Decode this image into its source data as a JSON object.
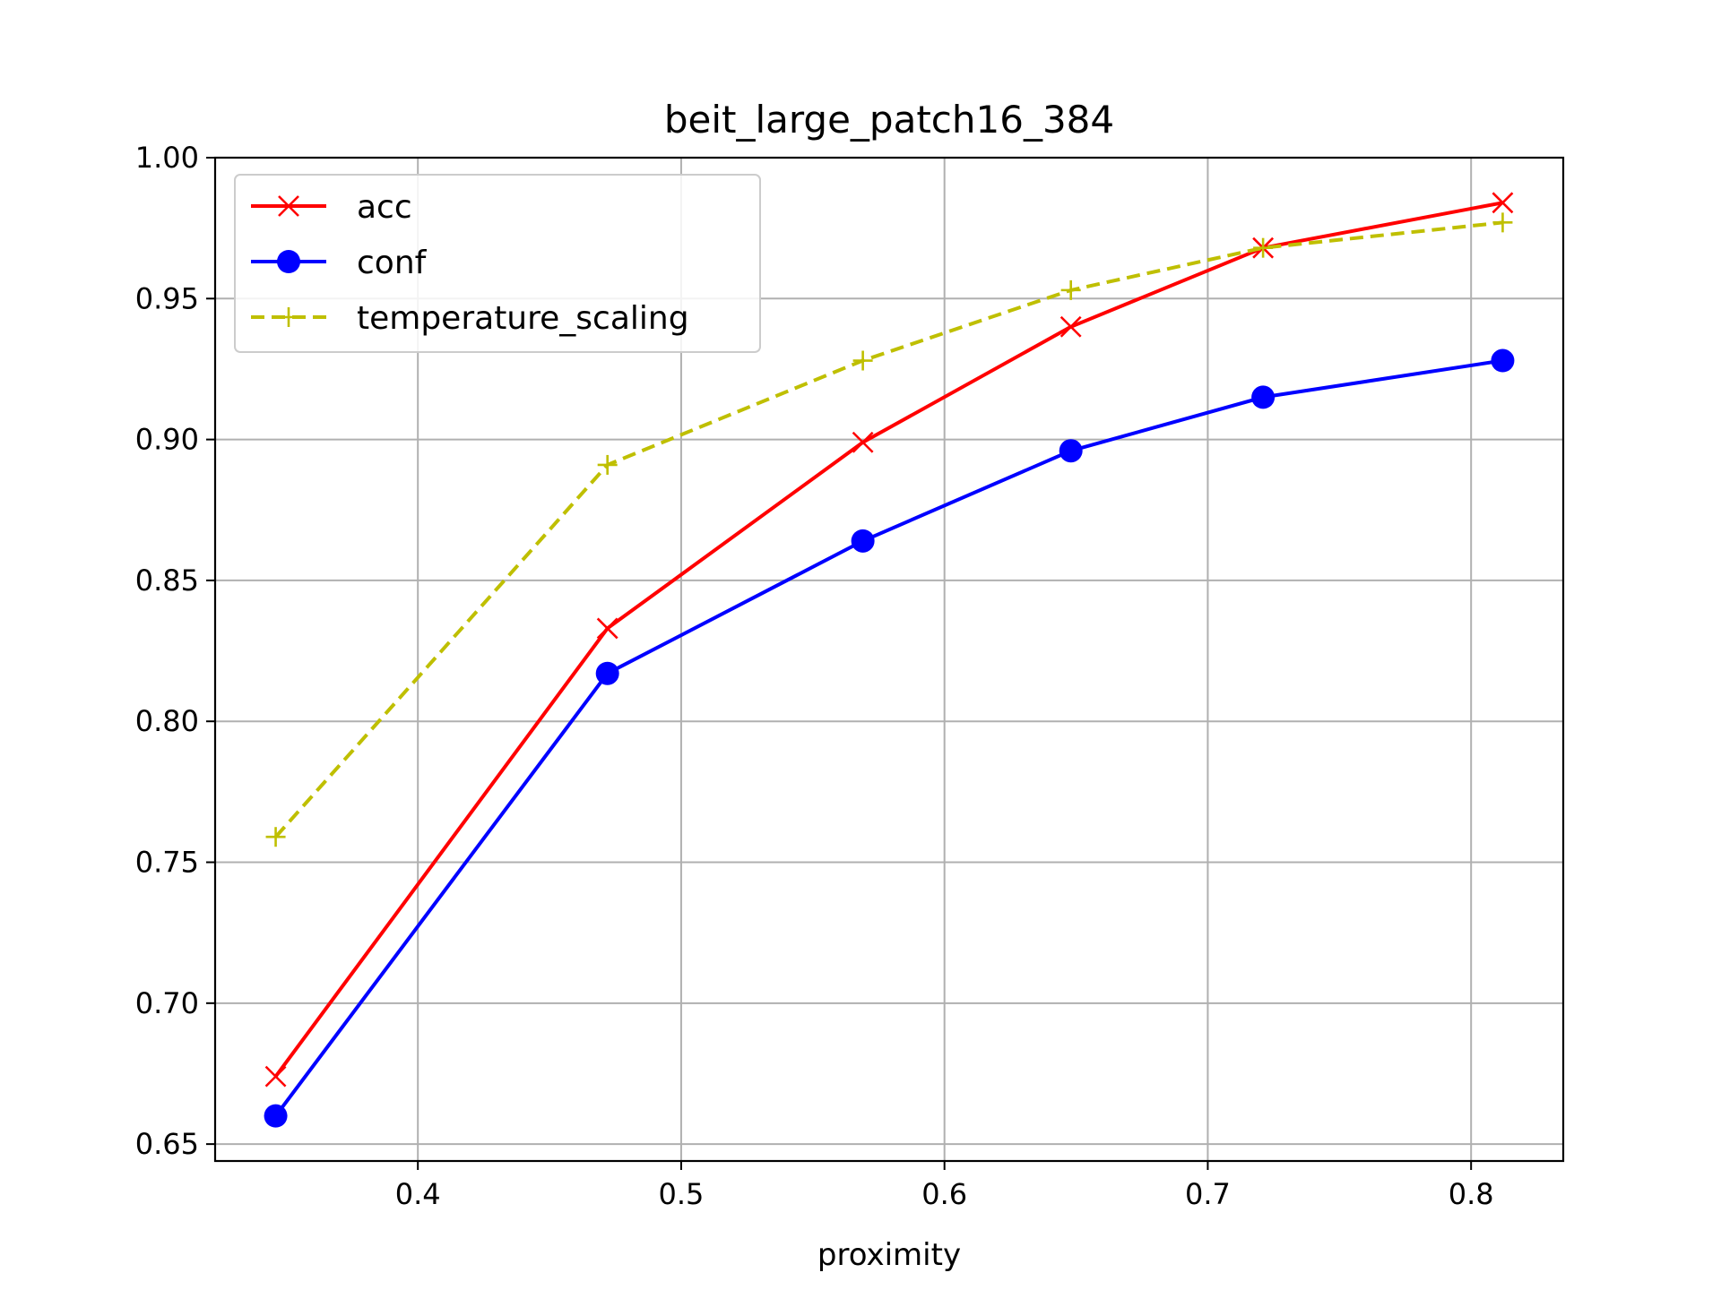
{
  "chart_data": {
    "type": "line",
    "title": "beit_large_patch16_384",
    "xlabel": "proximity",
    "ylabel": "",
    "xlim": [
      0.323,
      0.835
    ],
    "ylim": [
      0.644,
      1.0
    ],
    "xticks": [
      0.4,
      0.5,
      0.6,
      0.7,
      0.8
    ],
    "xtick_labels": [
      "0.4",
      "0.5",
      "0.6",
      "0.7",
      "0.8"
    ],
    "yticks": [
      0.65,
      0.7,
      0.75,
      0.8,
      0.85,
      0.9,
      0.95,
      1.0
    ],
    "ytick_labels": [
      "0.65",
      "0.70",
      "0.75",
      "0.80",
      "0.85",
      "0.90",
      "0.95",
      "1.00"
    ],
    "grid": true,
    "legend_position": "top-left",
    "x": [
      0.346,
      0.472,
      0.569,
      0.648,
      0.721,
      0.812
    ],
    "series": [
      {
        "name": "acc",
        "values": [
          0.674,
          0.833,
          0.899,
          0.94,
          0.968,
          0.984
        ],
        "color": "#ff0000",
        "marker": "x",
        "linestyle": "solid"
      },
      {
        "name": "conf",
        "values": [
          0.66,
          0.817,
          0.864,
          0.896,
          0.915,
          0.928
        ],
        "color": "#0000ff",
        "marker": "o",
        "linestyle": "solid"
      },
      {
        "name": "temperature_scaling",
        "values": [
          0.759,
          0.891,
          0.928,
          0.953,
          0.968,
          0.977
        ],
        "color": "#bfbf00",
        "marker": "+",
        "linestyle": "dashed"
      }
    ]
  }
}
